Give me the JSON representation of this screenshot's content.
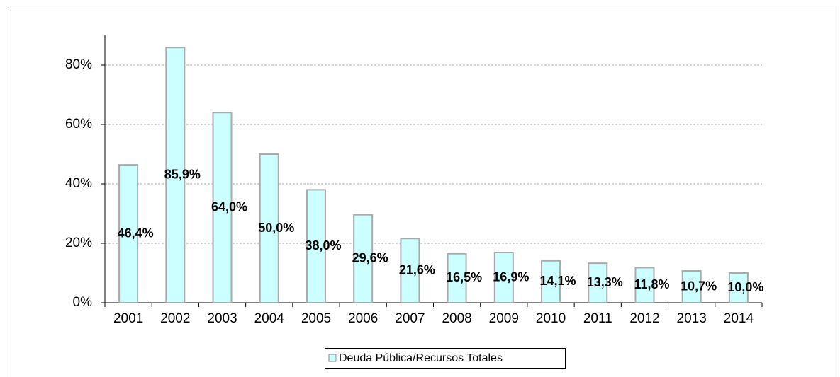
{
  "chart_data": {
    "type": "bar",
    "categories": [
      "2001",
      "2002",
      "2003",
      "2004",
      "2005",
      "2006",
      "2007",
      "2008",
      "2009",
      "2010",
      "2011",
      "2012",
      "2013",
      "2014"
    ],
    "series": [
      {
        "name": "Deuda Pública/Recursos Totales",
        "color": "#ccffff",
        "values": [
          46.4,
          85.9,
          64.0,
          50.0,
          38.0,
          29.6,
          21.6,
          16.5,
          16.9,
          14.1,
          13.3,
          11.8,
          10.7,
          10.0
        ],
        "value_labels": [
          "46,4%",
          "85,9%",
          "64,0%",
          "50,0%",
          "38,0%",
          "29,6%",
          "21,6%",
          "16,5%",
          "16,9%",
          "14,1%",
          "13,3%",
          "11,8%",
          "10,7%",
          "10,0%"
        ]
      }
    ],
    "ylim": [
      0,
      90
    ],
    "yticks": [
      {
        "value": 0,
        "label": "0%"
      },
      {
        "value": 20,
        "label": "20%"
      },
      {
        "value": 40,
        "label": "40%"
      },
      {
        "value": 60,
        "label": "60%"
      },
      {
        "value": 80,
        "label": "80%"
      }
    ],
    "grid": true,
    "legend": "bottom"
  }
}
